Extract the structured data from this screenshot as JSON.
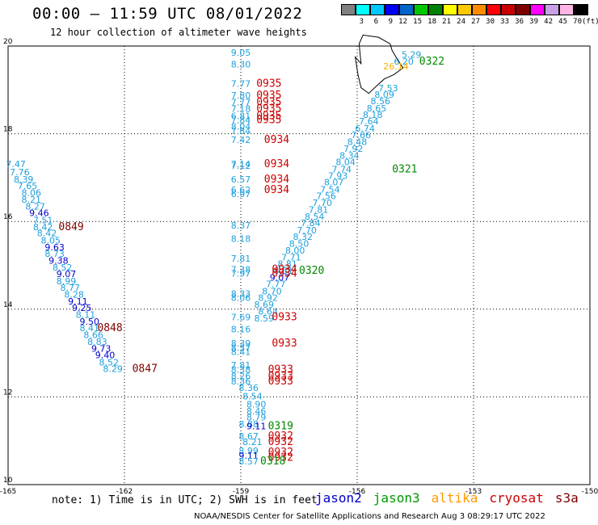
{
  "title": "00:00 – 11:59 UTC 08/01/2022",
  "subtitle": "12 hour collection of altimeter wave heights",
  "colorbar": {
    "colors": [
      "#808080",
      "#00ffff",
      "#00c8ff",
      "#0000ff",
      "#0064c8",
      "#00c800",
      "#008000",
      "#ffff00",
      "#ffc800",
      "#ff8c00",
      "#ff0000",
      "#c80000",
      "#800000",
      "#ff00ff",
      "#c8a0e6",
      "#ffb4e6",
      "#000000"
    ],
    "labels": [
      "3",
      "6",
      "9",
      "12",
      "15",
      "18",
      "21",
      "24",
      "27",
      "30",
      "33",
      "36",
      "39",
      "42",
      "45",
      "70"
    ],
    "units": "(ft)"
  },
  "note": "note: 1) Time is in UTC; 2) SWH is in feet",
  "legend": [
    {
      "name": "jason2",
      "color": "#0000cc"
    },
    {
      "name": "jason3",
      "color": "#009900"
    },
    {
      "name": "altika",
      "color": "#ff9900"
    },
    {
      "name": "cryosat",
      "color": "#cc0000"
    },
    {
      "name": "s3a",
      "color": "#800000"
    }
  ],
  "footer": "NOAA/NESDIS Center for Satellite Applications and Research   Aug  3 08:29:17 UTC 2022",
  "chart_data": {
    "type": "scatter",
    "title": "00:00 – 11:59 UTC 08/01/2022",
    "xlim": [
      -165,
      -150
    ],
    "ylim": [
      10,
      20
    ],
    "x_ticks": [
      "-165",
      "-162",
      "-159",
      "-156",
      "-153",
      "-150"
    ],
    "y_ticks": [
      "10",
      "12",
      "14",
      "16",
      "18",
      "20"
    ],
    "grid": true,
    "points": [
      {
        "x": -159.0,
        "y": 19.78,
        "v": "9.05",
        "c": "#1ea0dc"
      },
      {
        "x": -159.0,
        "y": 19.51,
        "v": "8.30",
        "c": "#1ea0dc"
      },
      {
        "x": -159.0,
        "y": 19.07,
        "v": "7.77",
        "c": "#1ea0dc"
      },
      {
        "x": -159.0,
        "y": 18.8,
        "v": "7.80",
        "c": "#1ea0dc"
      },
      {
        "x": -159.0,
        "y": 18.65,
        "v": "7.77",
        "c": "#1ea0dc"
      },
      {
        "x": -159.0,
        "y": 18.5,
        "v": "7.18",
        "c": "#1ea0dc"
      },
      {
        "x": -159.0,
        "y": 18.33,
        "v": "6.81",
        "c": "#1ea0dc"
      },
      {
        "x": -159.0,
        "y": 18.24,
        "v": "7.84",
        "c": "#1ea0dc"
      },
      {
        "x": -159.0,
        "y": 18.09,
        "v": "8.04",
        "c": "#1ea0dc"
      },
      {
        "x": -159.0,
        "y": 17.99,
        "v": "7.84",
        "c": "#1ea0dc"
      },
      {
        "x": -159.0,
        "y": 17.79,
        "v": "7.42",
        "c": "#1ea0dc"
      },
      {
        "x": -159.0,
        "y": 17.24,
        "v": "7.14",
        "c": "#1ea0dc"
      },
      {
        "x": -159.0,
        "y": 17.2,
        "v": "7.12",
        "c": "#1ea0dc"
      },
      {
        "x": -159.0,
        "y": 16.89,
        "v": "6.57",
        "c": "#1ea0dc"
      },
      {
        "x": -159.0,
        "y": 16.65,
        "v": "6.62",
        "c": "#1ea0dc"
      },
      {
        "x": -159.0,
        "y": 16.56,
        "v": "6.97",
        "c": "#1ea0dc"
      },
      {
        "x": -159.0,
        "y": 15.84,
        "v": "8.37",
        "c": "#1ea0dc"
      },
      {
        "x": -159.0,
        "y": 15.53,
        "v": "8.18",
        "c": "#1ea0dc"
      },
      {
        "x": -159.0,
        "y": 15.08,
        "v": "7.81",
        "c": "#1ea0dc"
      },
      {
        "x": -159.0,
        "y": 14.83,
        "v": "7.38",
        "c": "#1ea0dc"
      },
      {
        "x": -159.0,
        "y": 14.74,
        "v": "7.97",
        "c": "#1ea0dc"
      },
      {
        "x": -159.0,
        "y": 14.28,
        "v": "8.33",
        "c": "#1ea0dc"
      },
      {
        "x": -159.0,
        "y": 14.19,
        "v": "8.06",
        "c": "#1ea0dc"
      },
      {
        "x": -159.0,
        "y": 13.75,
        "v": "7.69",
        "c": "#1ea0dc"
      },
      {
        "x": -159.0,
        "y": 13.47,
        "v": "8.16",
        "c": "#1ea0dc"
      },
      {
        "x": -159.0,
        "y": 13.15,
        "v": "8.39",
        "c": "#1ea0dc"
      },
      {
        "x": -159.0,
        "y": 13.05,
        "v": "8.37",
        "c": "#1ea0dc"
      },
      {
        "x": -159.0,
        "y": 12.96,
        "v": "8.41",
        "c": "#1ea0dc"
      },
      {
        "x": -159.0,
        "y": 12.65,
        "v": "7.81",
        "c": "#1ea0dc"
      },
      {
        "x": -159.0,
        "y": 12.55,
        "v": "8.38",
        "c": "#1ea0dc"
      },
      {
        "x": -159.0,
        "y": 12.4,
        "v": "8.26",
        "c": "#1ea0dc"
      },
      {
        "x": -159.0,
        "y": 12.28,
        "v": "8.36",
        "c": "#1ea0dc"
      },
      {
        "x": -158.8,
        "y": 12.14,
        "v": "8.36",
        "c": "#1ea0dc"
      },
      {
        "x": -158.7,
        "y": 11.94,
        "v": "8.54",
        "c": "#1ea0dc"
      },
      {
        "x": -158.6,
        "y": 11.76,
        "v": "8.90",
        "c": "#1ea0dc"
      },
      {
        "x": -158.6,
        "y": 11.6,
        "v": "8.46",
        "c": "#1ea0dc"
      },
      {
        "x": -158.6,
        "y": 11.46,
        "v": "8.79",
        "c": "#1ea0dc"
      },
      {
        "x": -158.8,
        "y": 11.31,
        "v": "8.88",
        "c": "#1ea0dc"
      },
      {
        "x": -158.6,
        "y": 11.26,
        "v": "9.11",
        "c": "#0000cc"
      },
      {
        "x": -158.8,
        "y": 11.03,
        "v": "8.67",
        "c": "#1ea0dc"
      },
      {
        "x": -158.7,
        "y": 10.9,
        "v": "8.21",
        "c": "#1ea0dc"
      },
      {
        "x": -158.8,
        "y": 10.7,
        "v": "8.99",
        "c": "#1ea0dc"
      },
      {
        "x": -158.8,
        "y": 10.59,
        "v": "9.11",
        "c": "#0000cc"
      },
      {
        "x": -158.8,
        "y": 10.46,
        "v": "8.57",
        "c": "#1ea0dc"
      },
      {
        "x": -164.8,
        "y": 17.24,
        "v": "7.47",
        "c": "#1ea0dc"
      },
      {
        "x": -164.7,
        "y": 17.05,
        "v": "7.76",
        "c": "#1ea0dc"
      },
      {
        "x": -164.6,
        "y": 16.89,
        "v": "8.39",
        "c": "#1ea0dc"
      },
      {
        "x": -164.5,
        "y": 16.74,
        "v": "7.65",
        "c": "#1ea0dc"
      },
      {
        "x": -164.4,
        "y": 16.58,
        "v": "8.06",
        "c": "#1ea0dc"
      },
      {
        "x": -164.4,
        "y": 16.43,
        "v": "8.21",
        "c": "#1ea0dc"
      },
      {
        "x": -164.3,
        "y": 16.27,
        "v": "8.27",
        "c": "#1ea0dc"
      },
      {
        "x": -164.2,
        "y": 16.12,
        "v": "9.46",
        "c": "#0000cc"
      },
      {
        "x": -164.1,
        "y": 15.96,
        "v": "7.51",
        "c": "#1ea0dc"
      },
      {
        "x": -164.1,
        "y": 15.8,
        "v": "8.42",
        "c": "#1ea0dc"
      },
      {
        "x": -164.0,
        "y": 15.66,
        "v": "8.42",
        "c": "#1ea0dc"
      },
      {
        "x": -163.9,
        "y": 15.5,
        "v": "8.05",
        "c": "#1ea0dc"
      },
      {
        "x": -163.8,
        "y": 15.34,
        "v": "9.63",
        "c": "#0000cc"
      },
      {
        "x": -163.8,
        "y": 15.19,
        "v": "8.73",
        "c": "#1ea0dc"
      },
      {
        "x": -163.7,
        "y": 15.04,
        "v": "9.38",
        "c": "#0000cc"
      },
      {
        "x": -163.6,
        "y": 14.88,
        "v": "8.52",
        "c": "#1ea0dc"
      },
      {
        "x": -163.5,
        "y": 14.73,
        "v": "9.07",
        "c": "#0000cc"
      },
      {
        "x": -163.5,
        "y": 14.57,
        "v": "8.99",
        "c": "#1ea0dc"
      },
      {
        "x": -163.4,
        "y": 14.42,
        "v": "8.77",
        "c": "#1ea0dc"
      },
      {
        "x": -163.3,
        "y": 14.26,
        "v": "8.28",
        "c": "#1ea0dc"
      },
      {
        "x": -163.2,
        "y": 14.11,
        "v": "9.11",
        "c": "#0000cc"
      },
      {
        "x": -163.1,
        "y": 13.96,
        "v": "9.25",
        "c": "#0000cc"
      },
      {
        "x": -163.0,
        "y": 13.8,
        "v": "8.11",
        "c": "#1ea0dc"
      },
      {
        "x": -162.9,
        "y": 13.65,
        "v": "9.50",
        "c": "#0000cc"
      },
      {
        "x": -162.9,
        "y": 13.5,
        "v": "8.41",
        "c": "#1ea0dc"
      },
      {
        "x": -162.8,
        "y": 13.34,
        "v": "8.66",
        "c": "#1ea0dc"
      },
      {
        "x": -162.7,
        "y": 13.19,
        "v": "8.83",
        "c": "#1ea0dc"
      },
      {
        "x": -162.6,
        "y": 13.03,
        "v": "9.73",
        "c": "#0000cc"
      },
      {
        "x": -162.5,
        "y": 12.88,
        "v": "9.40",
        "c": "#0000cc"
      },
      {
        "x": -162.4,
        "y": 12.72,
        "v": "8.52",
        "c": "#1ea0dc"
      },
      {
        "x": -162.3,
        "y": 12.57,
        "v": "8.29",
        "c": "#1ea0dc"
      },
      {
        "x": -154.6,
        "y": 19.73,
        "v": "5.29",
        "c": "#1ea0dc"
      },
      {
        "x": -154.8,
        "y": 19.58,
        "v": "6.20",
        "c": "#1ea0dc"
      },
      {
        "x": -155.0,
        "y": 19.47,
        "v": "26.14",
        "c": "#ffaa00"
      },
      {
        "x": -155.2,
        "y": 18.97,
        "v": "7.53",
        "c": "#1ea0dc"
      },
      {
        "x": -155.3,
        "y": 18.82,
        "v": "8.09",
        "c": "#1ea0dc"
      },
      {
        "x": -155.4,
        "y": 18.67,
        "v": "8.56",
        "c": "#1ea0dc"
      },
      {
        "x": -155.5,
        "y": 18.51,
        "v": "8.65",
        "c": "#1ea0dc"
      },
      {
        "x": -155.6,
        "y": 18.36,
        "v": "8.18",
        "c": "#1ea0dc"
      },
      {
        "x": -155.7,
        "y": 18.21,
        "v": "7.64",
        "c": "#1ea0dc"
      },
      {
        "x": -155.8,
        "y": 18.05,
        "v": "6.74",
        "c": "#1ea0dc"
      },
      {
        "x": -155.9,
        "y": 17.9,
        "v": "7.66",
        "c": "#1ea0dc"
      },
      {
        "x": -156.0,
        "y": 17.74,
        "v": "8.48",
        "c": "#1ea0dc"
      },
      {
        "x": -156.1,
        "y": 17.59,
        "v": "7.92",
        "c": "#1ea0dc"
      },
      {
        "x": -156.2,
        "y": 17.43,
        "v": "8.34",
        "c": "#1ea0dc"
      },
      {
        "x": -156.3,
        "y": 17.28,
        "v": "8.04",
        "c": "#1ea0dc"
      },
      {
        "x": -156.4,
        "y": 17.12,
        "v": "7.74",
        "c": "#1ea0dc"
      },
      {
        "x": -156.5,
        "y": 16.97,
        "v": "7.93",
        "c": "#1ea0dc"
      },
      {
        "x": -156.6,
        "y": 16.82,
        "v": "8.07",
        "c": "#1ea0dc"
      },
      {
        "x": -156.7,
        "y": 16.66,
        "v": "7.54",
        "c": "#1ea0dc"
      },
      {
        "x": -156.8,
        "y": 16.51,
        "v": "7.56",
        "c": "#1ea0dc"
      },
      {
        "x": -156.9,
        "y": 16.35,
        "v": "7.70",
        "c": "#1ea0dc"
      },
      {
        "x": -157.0,
        "y": 16.2,
        "v": "7.81",
        "c": "#1ea0dc"
      },
      {
        "x": -157.1,
        "y": 16.04,
        "v": "8.54",
        "c": "#1ea0dc"
      },
      {
        "x": -157.2,
        "y": 15.89,
        "v": "7.84",
        "c": "#1ea0dc"
      },
      {
        "x": -157.3,
        "y": 15.73,
        "v": "7.70",
        "c": "#1ea0dc"
      },
      {
        "x": -157.4,
        "y": 15.58,
        "v": "8.32",
        "c": "#1ea0dc"
      },
      {
        "x": -157.5,
        "y": 15.42,
        "v": "8.50",
        "c": "#1ea0dc"
      },
      {
        "x": -157.6,
        "y": 15.27,
        "v": "8.00",
        "c": "#1ea0dc"
      },
      {
        "x": -157.7,
        "y": 15.11,
        "v": "7.71",
        "c": "#1ea0dc"
      },
      {
        "x": -157.8,
        "y": 14.96,
        "v": "8.81",
        "c": "#1ea0dc"
      },
      {
        "x": -157.9,
        "y": 14.81,
        "v": "8.31",
        "c": "#1ea0dc"
      },
      {
        "x": -158.0,
        "y": 14.65,
        "v": "9.07",
        "c": "#0000cc"
      },
      {
        "x": -158.1,
        "y": 14.5,
        "v": "7.77",
        "c": "#1ea0dc"
      },
      {
        "x": -158.2,
        "y": 14.34,
        "v": "8.70",
        "c": "#1ea0dc"
      },
      {
        "x": -158.3,
        "y": 14.19,
        "v": "8.92",
        "c": "#1ea0dc"
      },
      {
        "x": -158.4,
        "y": 14.03,
        "v": "8.69",
        "c": "#1ea0dc"
      },
      {
        "x": -158.3,
        "y": 13.88,
        "v": "8.64",
        "c": "#1ea0dc"
      },
      {
        "x": -158.4,
        "y": 13.72,
        "v": "8.59",
        "c": "#1ea0dc"
      }
    ],
    "times": [
      {
        "x": -158.6,
        "y": 19.07,
        "t": "0935",
        "c": "#cc0000"
      },
      {
        "x": -158.6,
        "y": 18.8,
        "t": "0935",
        "c": "#cc0000"
      },
      {
        "x": -158.6,
        "y": 18.65,
        "t": "0935",
        "c": "#cc0000"
      },
      {
        "x": -158.6,
        "y": 18.5,
        "t": "0935",
        "c": "#cc0000"
      },
      {
        "x": -158.6,
        "y": 18.33,
        "v": "",
        "t": "0935",
        "c": "#cc0000"
      },
      {
        "x": -158.6,
        "y": 18.24,
        "t": "0935",
        "c": "#cc0000"
      },
      {
        "x": -158.4,
        "y": 17.79,
        "t": "0934",
        "c": "#cc0000"
      },
      {
        "x": -158.4,
        "y": 17.24,
        "t": "0934",
        "c": "#cc0000"
      },
      {
        "x": -158.4,
        "y": 16.89,
        "t": "0934",
        "c": "#cc0000"
      },
      {
        "x": -158.4,
        "y": 16.65,
        "t": "0934",
        "c": "#cc0000"
      },
      {
        "x": -158.2,
        "y": 14.83,
        "t": "0934",
        "c": "#cc0000"
      },
      {
        "x": -158.2,
        "y": 14.74,
        "t": "0934",
        "c": "#cc0000"
      },
      {
        "x": -158.2,
        "y": 13.75,
        "t": "0933",
        "c": "#cc0000"
      },
      {
        "x": -158.2,
        "y": 13.15,
        "t": "0933",
        "c": "#cc0000"
      },
      {
        "x": -158.3,
        "y": 12.55,
        "t": "0933",
        "c": "#cc0000"
      },
      {
        "x": -158.3,
        "y": 12.4,
        "t": "0933",
        "c": "#cc0000"
      },
      {
        "x": -158.3,
        "y": 12.28,
        "t": "0933",
        "c": "#cc0000"
      },
      {
        "x": -158.3,
        "y": 11.03,
        "t": "0932",
        "c": "#cc0000"
      },
      {
        "x": -158.3,
        "y": 10.9,
        "t": "0932",
        "c": "#cc0000"
      },
      {
        "x": -158.3,
        "y": 10.66,
        "t": "0932",
        "c": "#cc0000"
      },
      {
        "x": -158.3,
        "y": 10.54,
        "t": "0932",
        "c": "#cc0000"
      },
      {
        "x": -154.4,
        "y": 19.58,
        "t": "0322",
        "c": "#008800"
      },
      {
        "x": -155.1,
        "y": 17.12,
        "t": "0321",
        "c": "#008800"
      },
      {
        "x": -157.5,
        "y": 14.81,
        "t": "0320",
        "c": "#008800"
      },
      {
        "x": -158.3,
        "y": 11.26,
        "t": "0319",
        "c": "#008800"
      },
      {
        "x": -158.5,
        "y": 10.46,
        "t": "0318",
        "c": "#008800"
      },
      {
        "x": -163.7,
        "y": 15.8,
        "t": "0849",
        "c": "#800000"
      },
      {
        "x": -162.7,
        "y": 13.5,
        "t": "0848",
        "c": "#800000"
      },
      {
        "x": -161.8,
        "y": 12.57,
        "t": "0847",
        "c": "#800000"
      }
    ]
  }
}
